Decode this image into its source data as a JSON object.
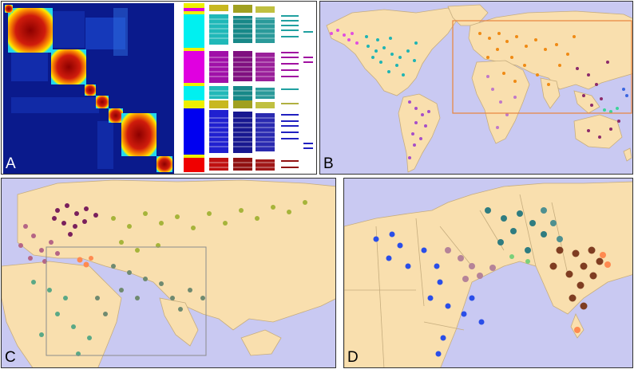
{
  "panels": [
    {
      "label": "A"
    },
    {
      "label": "B"
    },
    {
      "label": "C"
    },
    {
      "label": "D"
    }
  ],
  "colors": {
    "ocean": "#c9c9f2",
    "land": "#f9dfae",
    "border": "#c6ad7e",
    "heatmap_bg": "#0a1a8c",
    "box_orange": "#e8843c",
    "box_gray": "#8c8c8c"
  }
}
